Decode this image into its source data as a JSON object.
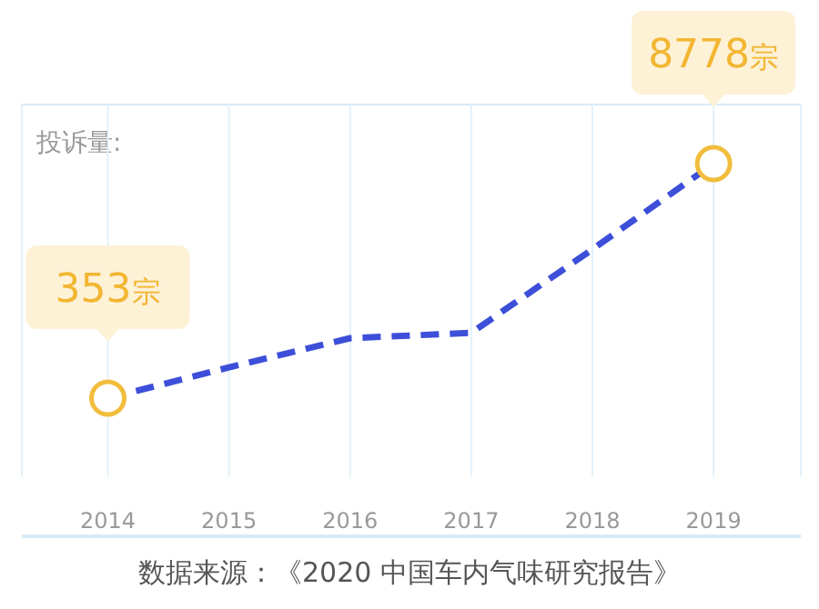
{
  "chart_data": {
    "type": "line",
    "ylabel": "投诉量:",
    "categories": [
      "2014",
      "2015",
      "2016",
      "2017",
      "2018",
      "2019"
    ],
    "series": [
      {
        "color": "#3d4fd9",
        "values": [
          353,
          1460,
          2510,
          2700,
          5700,
          8778
        ],
        "value_labels": [
          "353宗",
          null,
          null,
          null,
          null,
          "8778宗"
        ]
      }
    ],
    "grid": "x",
    "line_style": "dashed",
    "annotations": [
      "数据来源：《2020 中国车内气味研究报告》"
    ]
  }
}
